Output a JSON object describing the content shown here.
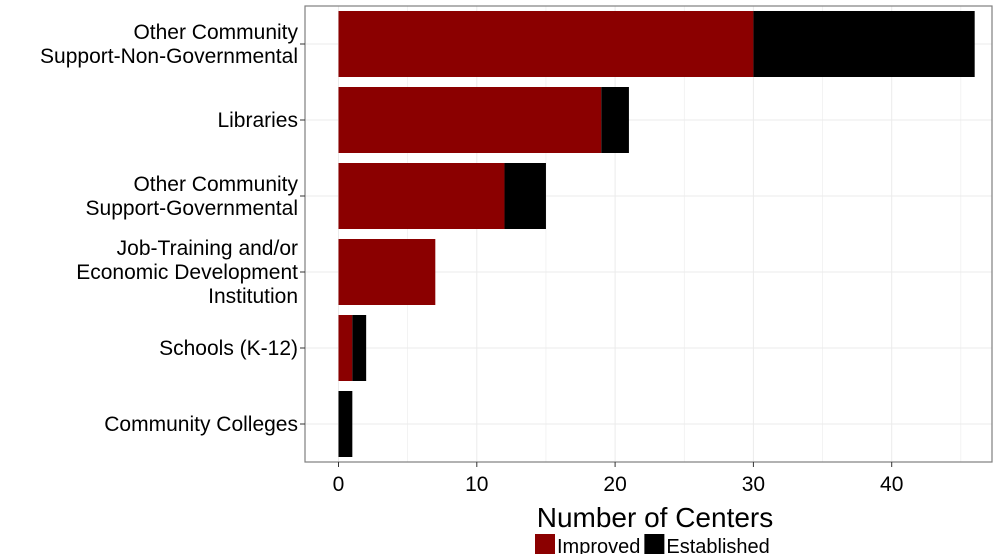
{
  "chart_data": {
    "type": "bar",
    "orientation": "horizontal",
    "stacked": true,
    "categories": [
      [
        "Other Community",
        "Support-Non-Governmental"
      ],
      [
        "Libraries"
      ],
      [
        "Other Community",
        "Support-Governmental"
      ],
      [
        "Job-Training and/or",
        "Economic Development",
        "Institution"
      ],
      [
        "Schools (K-12)"
      ],
      [
        "Community Colleges"
      ]
    ],
    "series": [
      {
        "name": "Improved",
        "color": "#8b0000",
        "values": [
          30,
          19,
          12,
          7,
          1,
          0
        ]
      },
      {
        "name": "Established",
        "color": "#000000",
        "values": [
          16,
          2,
          3,
          0,
          1,
          1
        ]
      }
    ],
    "xlabel": "Number of Centers",
    "xlim": [
      0,
      46
    ],
    "xticks": [
      "0",
      "10",
      "20",
      "30",
      "40"
    ],
    "grid": true,
    "legend_position": "bottom"
  }
}
